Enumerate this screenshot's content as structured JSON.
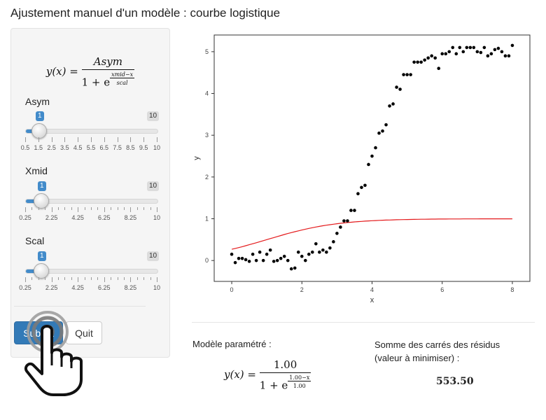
{
  "app": {
    "title": "Ajustement manuel d'un modèle : courbe logistique"
  },
  "formula": {
    "lhs": "y(x) =",
    "num": "Asym",
    "den_base": "1 + e",
    "exp_num": "xmid−x",
    "exp_den": "scal"
  },
  "sliders": [
    {
      "label": "Asym",
      "min": "1",
      "max": "10",
      "value": 1,
      "ticks": [
        "0.5",
        "1.5",
        "2.5",
        "3.5",
        "4.5",
        "5.5",
        "6.5",
        "7.5",
        "8.5",
        "9.5",
        "10"
      ]
    },
    {
      "label": "Xmid",
      "min": "1",
      "max": "10",
      "value": 1,
      "ticks": [
        "0.25",
        "2.25",
        "4.25",
        "6.25",
        "8.25",
        "10"
      ]
    },
    {
      "label": "Scal",
      "min": "1",
      "max": "10",
      "value": 1,
      "ticks": [
        "0.25",
        "2.25",
        "4.25",
        "6.25",
        "8.25",
        "10"
      ]
    }
  ],
  "buttons": {
    "submit": "Submit",
    "quit": "Quit"
  },
  "fit": {
    "label": "Modèle paramétré :",
    "lhs": "y(x) =",
    "num": "1.00",
    "den_base": "1 + e",
    "exp_num": "1.00−x",
    "exp_den": "1.00"
  },
  "rss": {
    "label_line1": "Somme des carrés des résidus",
    "label_line2": "(valeur à minimiser) :",
    "value": "553.50"
  },
  "chart_data": {
    "type": "scatter",
    "xlabel": "x",
    "ylabel": "y",
    "xlim": [
      -0.5,
      8.5
    ],
    "ylim": [
      -0.5,
      5.4
    ],
    "xticks": [
      0,
      2,
      4,
      6,
      8
    ],
    "yticks": [
      0,
      1,
      2,
      3,
      4,
      5
    ],
    "point_color": "#000000",
    "curve_color": "#e41a1c",
    "curve": {
      "asym": 1,
      "xmid": 1,
      "scal": 1
    },
    "points": {
      "x": [
        0.0,
        0.1,
        0.2,
        0.3,
        0.4,
        0.5,
        0.6,
        0.7,
        0.8,
        0.9,
        1.0,
        1.1,
        1.2,
        1.3,
        1.4,
        1.5,
        1.6,
        1.7,
        1.8,
        1.9,
        2.0,
        2.1,
        2.2,
        2.3,
        2.4,
        2.5,
        2.6,
        2.7,
        2.8,
        2.9,
        3.0,
        3.1,
        3.2,
        3.3,
        3.4,
        3.5,
        3.6,
        3.7,
        3.8,
        3.9,
        4.0,
        4.1,
        4.2,
        4.3,
        4.4,
        4.5,
        4.6,
        4.7,
        4.8,
        4.9,
        5.0,
        5.1,
        5.2,
        5.3,
        5.4,
        5.5,
        5.6,
        5.7,
        5.8,
        5.9,
        6.0,
        6.1,
        6.2,
        6.3,
        6.4,
        6.5,
        6.6,
        6.7,
        6.8,
        6.9,
        7.0,
        7.1,
        7.2,
        7.3,
        7.4,
        7.5,
        7.6,
        7.7,
        7.8,
        7.9,
        8.0
      ],
      "y": [
        0.15,
        -0.05,
        0.05,
        0.05,
        0.02,
        -0.02,
        0.15,
        0.0,
        0.2,
        0.0,
        0.15,
        0.25,
        -0.02,
        0.0,
        0.05,
        0.1,
        0.0,
        -0.2,
        -0.18,
        0.2,
        0.1,
        0.0,
        0.15,
        0.2,
        0.4,
        0.2,
        0.25,
        0.2,
        0.3,
        0.45,
        0.65,
        0.8,
        0.95,
        0.95,
        1.2,
        1.2,
        1.6,
        1.75,
        1.8,
        2.3,
        2.5,
        2.7,
        3.05,
        3.1,
        3.25,
        3.7,
        3.75,
        4.15,
        4.1,
        4.45,
        4.45,
        4.45,
        4.75,
        4.75,
        4.75,
        4.8,
        4.85,
        4.9,
        4.85,
        4.6,
        4.95,
        4.95,
        5.0,
        5.1,
        4.95,
        5.1,
        5.0,
        5.1,
        5.1,
        5.1,
        5.0,
        4.98,
        5.1,
        4.9,
        4.95,
        5.05,
        5.08,
        5.0,
        4.9,
        4.9,
        5.15
      ]
    }
  }
}
